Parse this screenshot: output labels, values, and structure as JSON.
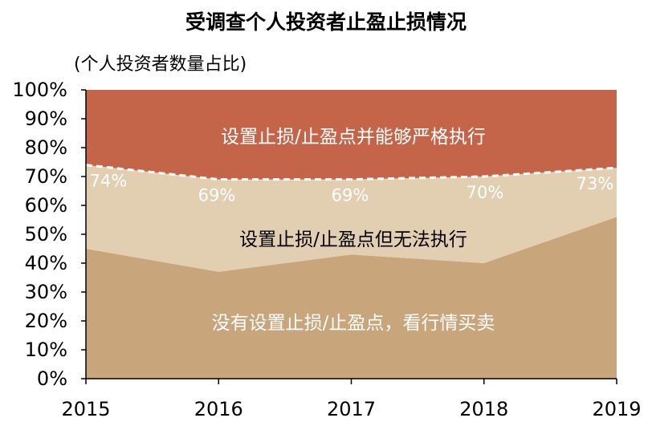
{
  "title": "受调查个人投资者止盈止损情况",
  "subtitle": "(个人投资者数量占比)",
  "chart_data": {
    "type": "area",
    "stacked": true,
    "x": [
      "2015",
      "2016",
      "2017",
      "2018",
      "2019"
    ],
    "ylim": [
      0,
      100
    ],
    "yticks": [
      "0%",
      "10%",
      "20%",
      "30%",
      "40%",
      "50%",
      "60%",
      "70%",
      "80%",
      "90%",
      "100%"
    ],
    "series": [
      {
        "name": "没有设置止损/止盈点，看行情买卖",
        "values": [
          45,
          37,
          43,
          40,
          56
        ],
        "color": "#c8a57a"
      },
      {
        "name": "设置止损/止盈点但无法执行",
        "values": [
          29,
          32,
          26,
          30,
          17
        ],
        "color": "#e2ceb1"
      },
      {
        "name": "设置止损/止盈点并能够严格执行",
        "values": [
          26,
          31,
          31,
          30,
          27
        ],
        "color": "#c4654a"
      }
    ],
    "boundary_labels": [
      "74%",
      "69%",
      "69%",
      "70%",
      "73%"
    ]
  }
}
